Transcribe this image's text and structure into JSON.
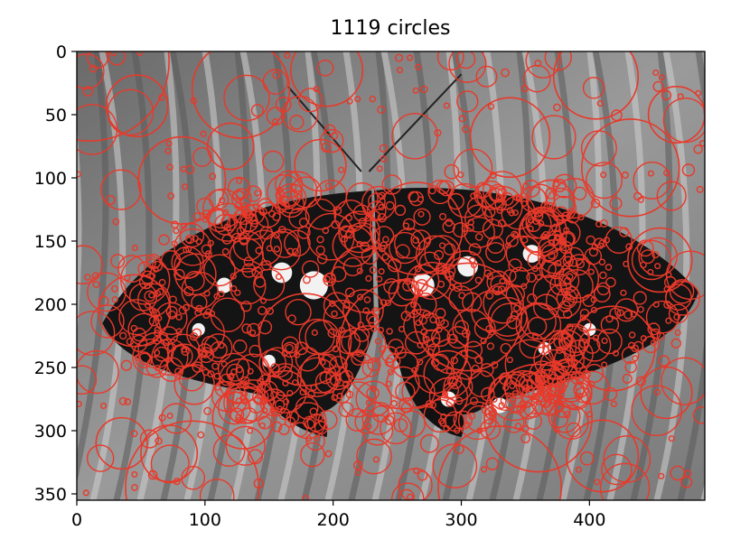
{
  "chart_data": {
    "type": "scatter",
    "title": "1119 circles",
    "xlabel": "",
    "ylabel": "",
    "xlim": [
      0,
      490
    ],
    "ylim": [
      355,
      0
    ],
    "x_ticks": [
      0,
      100,
      200,
      300,
      400
    ],
    "y_ticks": [
      0,
      50,
      100,
      150,
      200,
      250,
      300,
      350
    ],
    "grid": false,
    "background": "grayscale photograph of a black-and-white butterfly on a striped leaf",
    "marker": "unfilled circle",
    "circle_color": "#e8392a",
    "circle_count": 1119,
    "series": [
      {
        "values": [
          {
            "x": 10,
            "y": 8,
            "r": 62
          },
          {
            "x": 82,
            "y": 102,
            "r": 34
          },
          {
            "x": 47,
            "y": 43,
            "r": 24
          },
          {
            "x": 128,
            "y": 30,
            "r": 38
          },
          {
            "x": 195,
            "y": 15,
            "r": 28
          },
          {
            "x": 265,
            "y": 140,
            "r": 36
          },
          {
            "x": 338,
            "y": 68,
            "r": 31
          },
          {
            "x": 405,
            "y": 20,
            "r": 33
          },
          {
            "x": 432,
            "y": 92,
            "r": 38
          },
          {
            "x": 468,
            "y": 50,
            "r": 22
          },
          {
            "x": 330,
            "y": 345,
            "r": 48
          },
          {
            "x": 90,
            "y": 345,
            "r": 52
          },
          {
            "x": 360,
            "y": 290,
            "r": 42
          },
          {
            "x": 255,
            "y": 232,
            "r": 50
          },
          {
            "x": 178,
            "y": 228,
            "r": 36
          },
          {
            "x": 305,
            "y": 210,
            "r": 42
          },
          {
            "x": 45,
            "y": 205,
            "r": 28
          },
          {
            "x": 72,
            "y": 318,
            "r": 22
          },
          {
            "x": 418,
            "y": 235,
            "r": 33
          },
          {
            "x": 225,
            "y": 180,
            "r": 26
          },
          {
            "x": 120,
            "y": 75,
            "r": 18
          },
          {
            "x": 190,
            "y": 90,
            "r": 20
          },
          {
            "x": 370,
            "y": 120,
            "r": 18
          },
          {
            "x": 455,
            "y": 165,
            "r": 25
          },
          {
            "x": 460,
            "y": 270,
            "r": 20
          },
          {
            "x": 410,
            "y": 320,
            "r": 28
          },
          {
            "x": 130,
            "y": 290,
            "r": 24
          },
          {
            "x": 35,
            "y": 310,
            "r": 20
          }
        ]
      }
    ]
  }
}
